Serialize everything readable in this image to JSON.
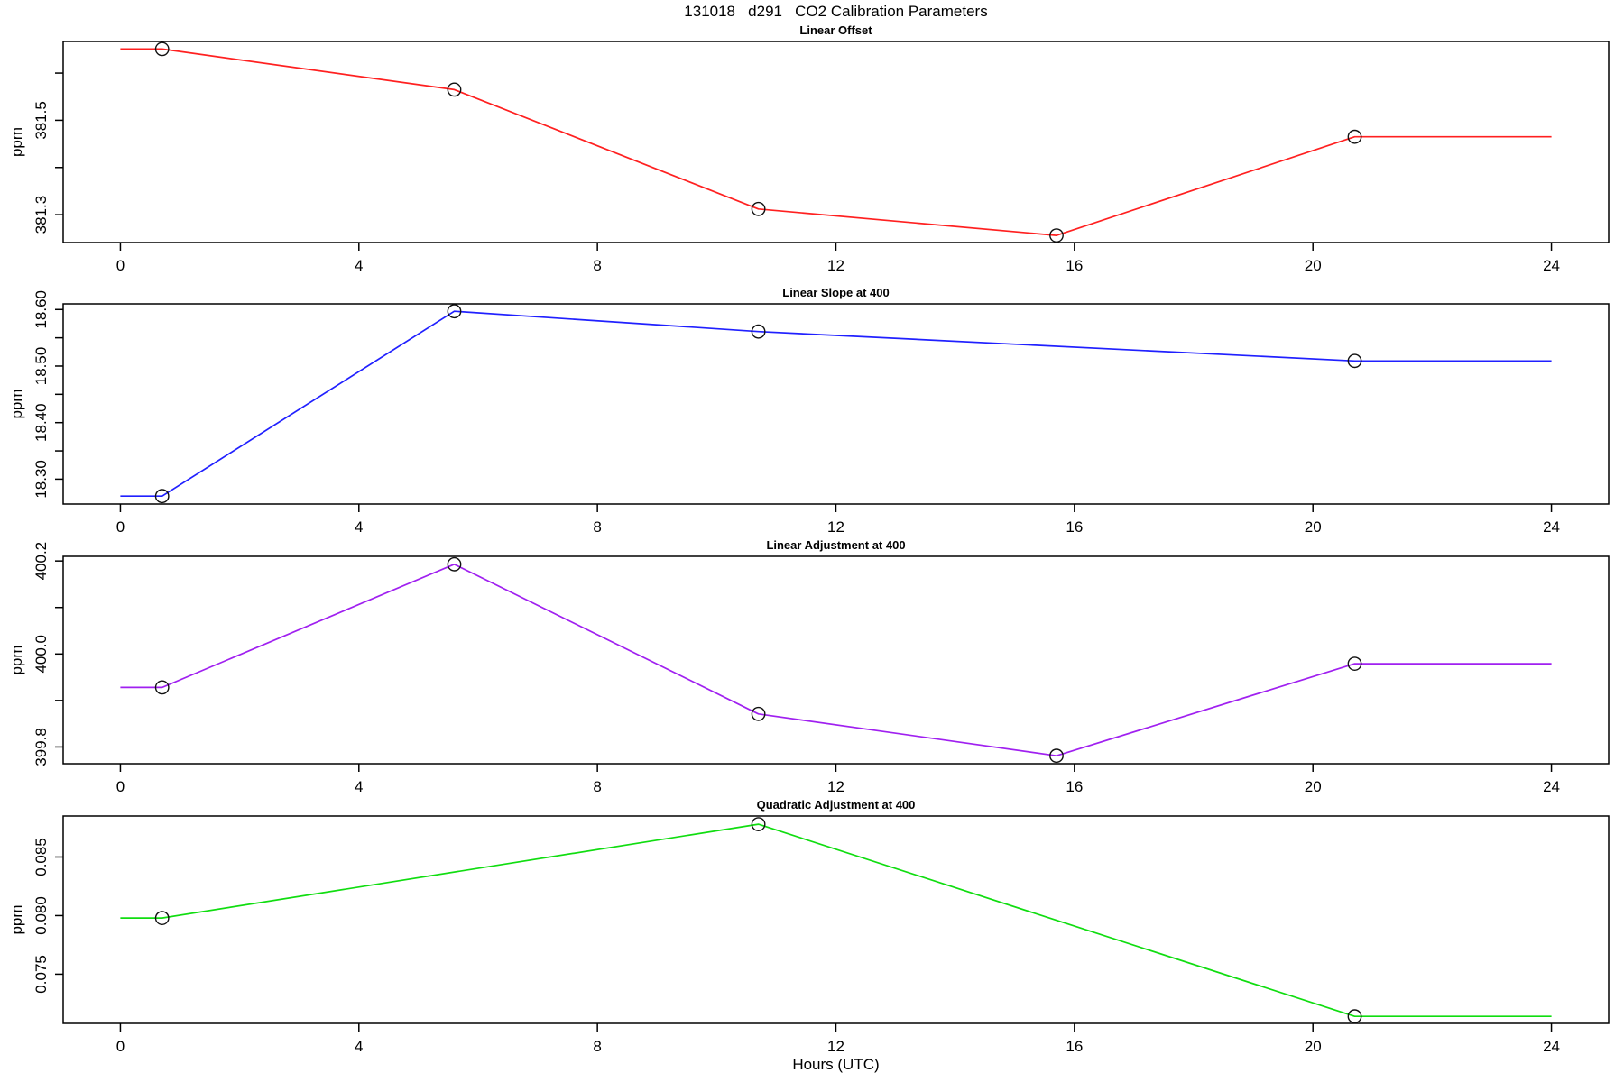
{
  "title": "131018   d291   CO2 Calibration Parameters",
  "x_axis": {
    "label": "Hours (UTC)",
    "ticks": [
      0,
      4,
      8,
      12,
      16,
      20,
      24
    ],
    "lim": [
      -0.96,
      24.96
    ]
  },
  "chart_data": [
    {
      "type": "line",
      "title": "Linear Offset",
      "color": "#ff2020",
      "marker": "open-circle",
      "ylabel": "ppm",
      "x": [
        0.7,
        5.6,
        10.7,
        15.7,
        20.7
      ],
      "y": [
        381.651,
        381.565,
        381.312,
        381.256,
        381.465
      ],
      "flat_extend_x": [
        0,
        24
      ],
      "ylim": [
        381.241,
        381.667
      ],
      "yticks": [
        381.3,
        381.4,
        381.5,
        381.6
      ],
      "ytick_labels": [
        "381.3",
        "",
        "381.5",
        ""
      ],
      "grid": false
    },
    {
      "type": "line",
      "title": "Linear Slope at 400",
      "color": "#2020ff",
      "marker": "open-circle",
      "ylabel": "ppm",
      "x": [
        0.7,
        5.6,
        10.7,
        20.7
      ],
      "y": [
        18.27,
        18.597,
        18.561,
        18.509
      ],
      "flat_extend_x": [
        0,
        24
      ],
      "ylim": [
        18.256,
        18.61
      ],
      "yticks": [
        18.3,
        18.35,
        18.4,
        18.45,
        18.5,
        18.55,
        18.6
      ],
      "ytick_labels": [
        "18.30",
        "",
        "18.40",
        "",
        "18.50",
        "",
        "18.60"
      ],
      "grid": false
    },
    {
      "type": "line",
      "title": "Linear Adjustment at 400",
      "color": "#a020f0",
      "marker": "open-circle",
      "ylabel": "ppm",
      "x": [
        0.7,
        5.6,
        10.7,
        15.7,
        20.7
      ],
      "y": [
        399.928,
        400.193,
        399.871,
        399.781,
        399.979
      ],
      "flat_extend_x": [
        0,
        24
      ],
      "ylim": [
        399.764,
        400.21
      ],
      "yticks": [
        399.8,
        399.9,
        400.0,
        400.1,
        400.2
      ],
      "ytick_labels": [
        "399.8",
        "",
        "400.0",
        "",
        "400.2"
      ],
      "grid": false
    },
    {
      "type": "line",
      "title": "Quadratic Adjustment at 400",
      "color": "#10dd10",
      "marker": "open-circle",
      "ylabel": "ppm",
      "x": [
        0.7,
        10.7,
        20.7
      ],
      "y": [
        0.0798,
        0.0878,
        0.0714
      ],
      "flat_extend_x": [
        0,
        24
      ],
      "ylim": [
        0.0708,
        0.0885
      ],
      "yticks": [
        0.075,
        0.08,
        0.085
      ],
      "ytick_labels": [
        "0.075",
        "0.080",
        "0.085"
      ],
      "grid": false
    }
  ]
}
